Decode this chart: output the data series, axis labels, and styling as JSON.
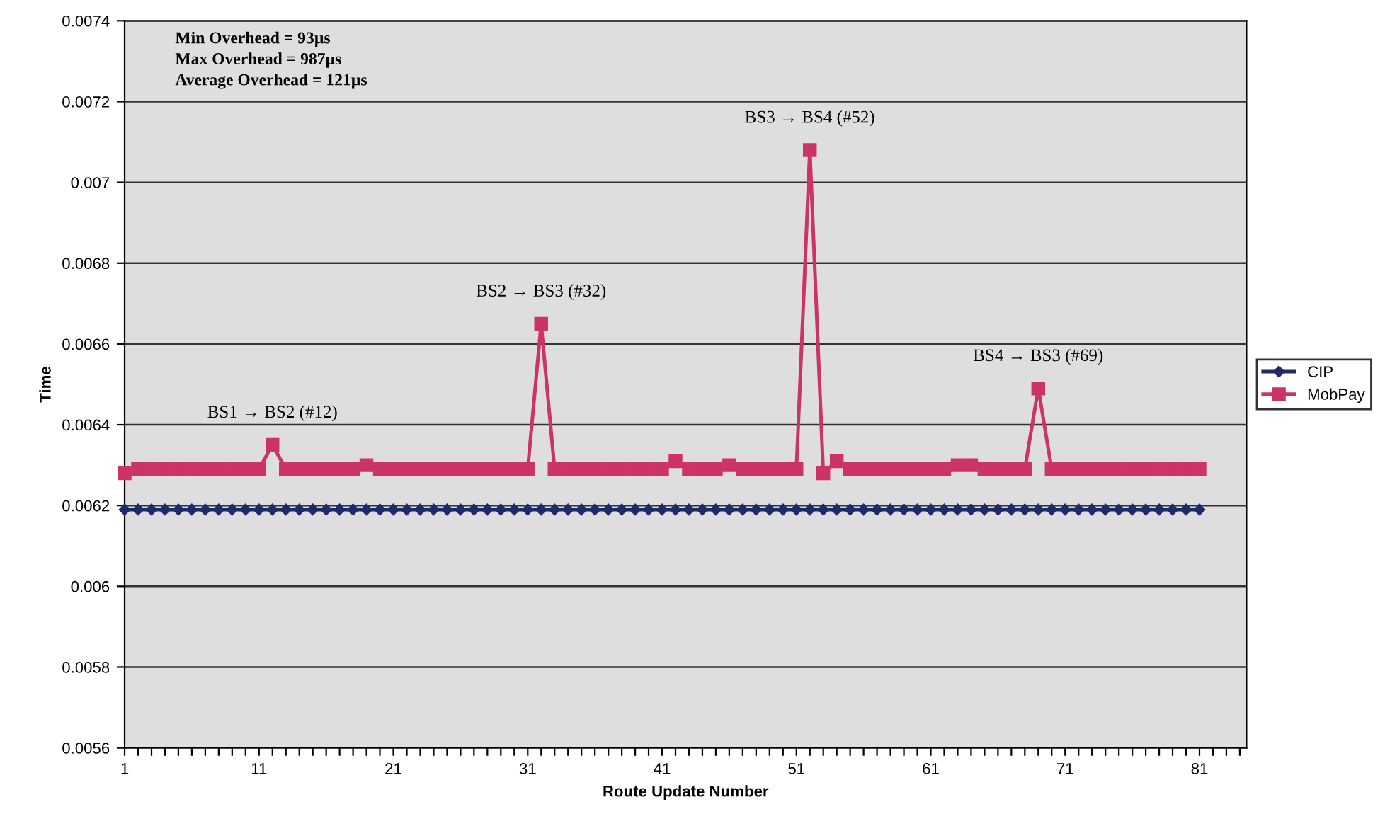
{
  "chart_data": {
    "type": "line",
    "xlabel": "Route Update Number",
    "ylabel": "Time",
    "x": [
      1,
      2,
      3,
      4,
      5,
      6,
      7,
      8,
      9,
      10,
      11,
      12,
      13,
      14,
      15,
      16,
      17,
      18,
      19,
      20,
      21,
      22,
      23,
      24,
      25,
      26,
      27,
      28,
      29,
      30,
      31,
      32,
      33,
      34,
      35,
      36,
      37,
      38,
      39,
      40,
      41,
      42,
      43,
      44,
      45,
      46,
      47,
      48,
      49,
      50,
      51,
      52,
      53,
      54,
      55,
      56,
      57,
      58,
      59,
      60,
      61,
      62,
      63,
      64,
      65,
      66,
      67,
      68,
      69,
      70,
      71,
      72,
      73,
      74,
      75,
      76,
      77,
      78,
      79,
      80,
      81
    ],
    "series": [
      {
        "name": "CIP",
        "color": "#1f2a6b",
        "marker": "diamond",
        "values": [
          0.00619,
          0.00619,
          0.00619,
          0.00619,
          0.00619,
          0.00619,
          0.00619,
          0.00619,
          0.00619,
          0.00619,
          0.00619,
          0.00619,
          0.00619,
          0.00619,
          0.00619,
          0.00619,
          0.00619,
          0.00619,
          0.00619,
          0.00619,
          0.00619,
          0.00619,
          0.00619,
          0.00619,
          0.00619,
          0.00619,
          0.00619,
          0.00619,
          0.00619,
          0.00619,
          0.00619,
          0.00619,
          0.00619,
          0.00619,
          0.00619,
          0.00619,
          0.00619,
          0.00619,
          0.00619,
          0.00619,
          0.00619,
          0.00619,
          0.00619,
          0.00619,
          0.00619,
          0.00619,
          0.00619,
          0.00619,
          0.00619,
          0.00619,
          0.00619,
          0.00619,
          0.00619,
          0.00619,
          0.00619,
          0.00619,
          0.00619,
          0.00619,
          0.00619,
          0.00619,
          0.00619,
          0.00619,
          0.00619,
          0.00619,
          0.00619,
          0.00619,
          0.00619,
          0.00619,
          0.00619,
          0.00619,
          0.00619,
          0.00619,
          0.00619,
          0.00619,
          0.00619,
          0.00619,
          0.00619,
          0.00619,
          0.00619,
          0.00619,
          0.00619
        ]
      },
      {
        "name": "MobPay",
        "color": "#cc3366",
        "marker": "square",
        "values": [
          0.00628,
          0.00629,
          0.00629,
          0.00629,
          0.00629,
          0.00629,
          0.00629,
          0.00629,
          0.00629,
          0.00629,
          0.00629,
          0.00635,
          0.00629,
          0.00629,
          0.00629,
          0.00629,
          0.00629,
          0.00629,
          0.0063,
          0.00629,
          0.00629,
          0.00629,
          0.00629,
          0.00629,
          0.00629,
          0.00629,
          0.00629,
          0.00629,
          0.00629,
          0.00629,
          0.00629,
          0.00665,
          0.00629,
          0.00629,
          0.00629,
          0.00629,
          0.00629,
          0.00629,
          0.00629,
          0.00629,
          0.00629,
          0.00631,
          0.00629,
          0.00629,
          0.00629,
          0.0063,
          0.00629,
          0.00629,
          0.00629,
          0.00629,
          0.00629,
          0.00708,
          0.00628,
          0.00631,
          0.00629,
          0.00629,
          0.00629,
          0.00629,
          0.00629,
          0.00629,
          0.00629,
          0.00629,
          0.0063,
          0.0063,
          0.00629,
          0.00629,
          0.00629,
          0.00629,
          0.00649,
          0.00629,
          0.00629,
          0.00629,
          0.00629,
          0.00629,
          0.00629,
          0.00629,
          0.00629,
          0.00629,
          0.00629,
          0.00629,
          0.00629
        ]
      }
    ],
    "xlim": [
      1,
      84.5
    ],
    "xticks": [
      1,
      {
        "value": 2,
        "label": null
      },
      {
        "value": 3,
        "label": null
      },
      {
        "value": 4,
        "label": null
      },
      {
        "value": 5,
        "label": null
      },
      {
        "value": 6,
        "label": null
      },
      {
        "value": 7,
        "label": null
      },
      {
        "value": 8,
        "label": null
      },
      {
        "value": 9,
        "label": null
      },
      {
        "value": 10,
        "label": null
      },
      11,
      {
        "value": 12,
        "label": null
      },
      {
        "value": 13,
        "label": null
      },
      {
        "value": 14,
        "label": null
      },
      {
        "value": 15,
        "label": null
      },
      {
        "value": 16,
        "label": null
      },
      {
        "value": 17,
        "label": null
      },
      {
        "value": 18,
        "label": null
      },
      {
        "value": 19,
        "label": null
      },
      {
        "value": 20,
        "label": null
      },
      21,
      {
        "value": 22,
        "label": null
      },
      {
        "value": 23,
        "label": null
      },
      {
        "value": 24,
        "label": null
      },
      {
        "value": 25,
        "label": null
      },
      {
        "value": 26,
        "label": null
      },
      {
        "value": 27,
        "label": null
      },
      {
        "value": 28,
        "label": null
      },
      {
        "value": 29,
        "label": null
      },
      {
        "value": 30,
        "label": null
      },
      31,
      {
        "value": 32,
        "label": null
      },
      {
        "value": 33,
        "label": null
      },
      {
        "value": 34,
        "label": null
      },
      {
        "value": 35,
        "label": null
      },
      {
        "value": 36,
        "label": null
      },
      {
        "value": 37,
        "label": null
      },
      {
        "value": 38,
        "label": null
      },
      {
        "value": 39,
        "label": null
      },
      {
        "value": 40,
        "label": null
      },
      41,
      {
        "value": 42,
        "label": null
      },
      {
        "value": 43,
        "label": null
      },
      {
        "value": 44,
        "label": null
      },
      {
        "value": 45,
        "label": null
      },
      {
        "value": 46,
        "label": null
      },
      {
        "value": 47,
        "label": null
      },
      {
        "value": 48,
        "label": null
      },
      {
        "value": 49,
        "label": null
      },
      {
        "value": 50,
        "label": null
      },
      51,
      {
        "value": 52,
        "label": null
      },
      {
        "value": 53,
        "label": null
      },
      {
        "value": 54,
        "label": null
      },
      {
        "value": 55,
        "label": null
      },
      {
        "value": 56,
        "label": null
      },
      {
        "value": 57,
        "label": null
      },
      {
        "value": 58,
        "label": null
      },
      {
        "value": 59,
        "label": null
      },
      {
        "value": 60,
        "label": null
      },
      61,
      {
        "value": 62,
        "label": null
      },
      {
        "value": 63,
        "label": null
      },
      {
        "value": 64,
        "label": null
      },
      {
        "value": 65,
        "label": null
      },
      {
        "value": 66,
        "label": null
      },
      {
        "value": 67,
        "label": null
      },
      {
        "value": 68,
        "label": null
      },
      {
        "value": 69,
        "label": null
      },
      {
        "value": 70,
        "label": null
      },
      71,
      {
        "value": 72,
        "label": null
      },
      {
        "value": 73,
        "label": null
      },
      {
        "value": 74,
        "label": null
      },
      {
        "value": 75,
        "label": null
      },
      {
        "value": 76,
        "label": null
      },
      {
        "value": 77,
        "label": null
      },
      {
        "value": 78,
        "label": null
      },
      {
        "value": 79,
        "label": null
      },
      {
        "value": 80,
        "label": null
      },
      81,
      {
        "value": 82,
        "label": null
      },
      {
        "value": 83,
        "label": null
      },
      {
        "value": 84,
        "label": null
      }
    ],
    "ylim": [
      0.0056,
      0.0074
    ],
    "yticks": [
      0.0056,
      0.0058,
      0.006,
      0.0062,
      0.0064,
      0.0066,
      0.0068,
      0.007,
      0.0072,
      0.0074
    ],
    "grid": "y",
    "legend": "right",
    "annotations": [
      "Min Overhead = 93µs\nMax Overhead = 987µs\nAverage Overhead = 121µs",
      {
        "text": "BS1 → BS2 (#12)",
        "x": 12,
        "y": 0.00635
      },
      {
        "text": "BS2 → BS3 (#32)",
        "x": 32,
        "y": 0.00665
      },
      {
        "text": "BS3 → BS4 (#52)",
        "x": 52,
        "y": 0.00708
      },
      {
        "text": "BS4 → BS3 (#69)",
        "x": 69,
        "y": 0.00649
      }
    ]
  }
}
